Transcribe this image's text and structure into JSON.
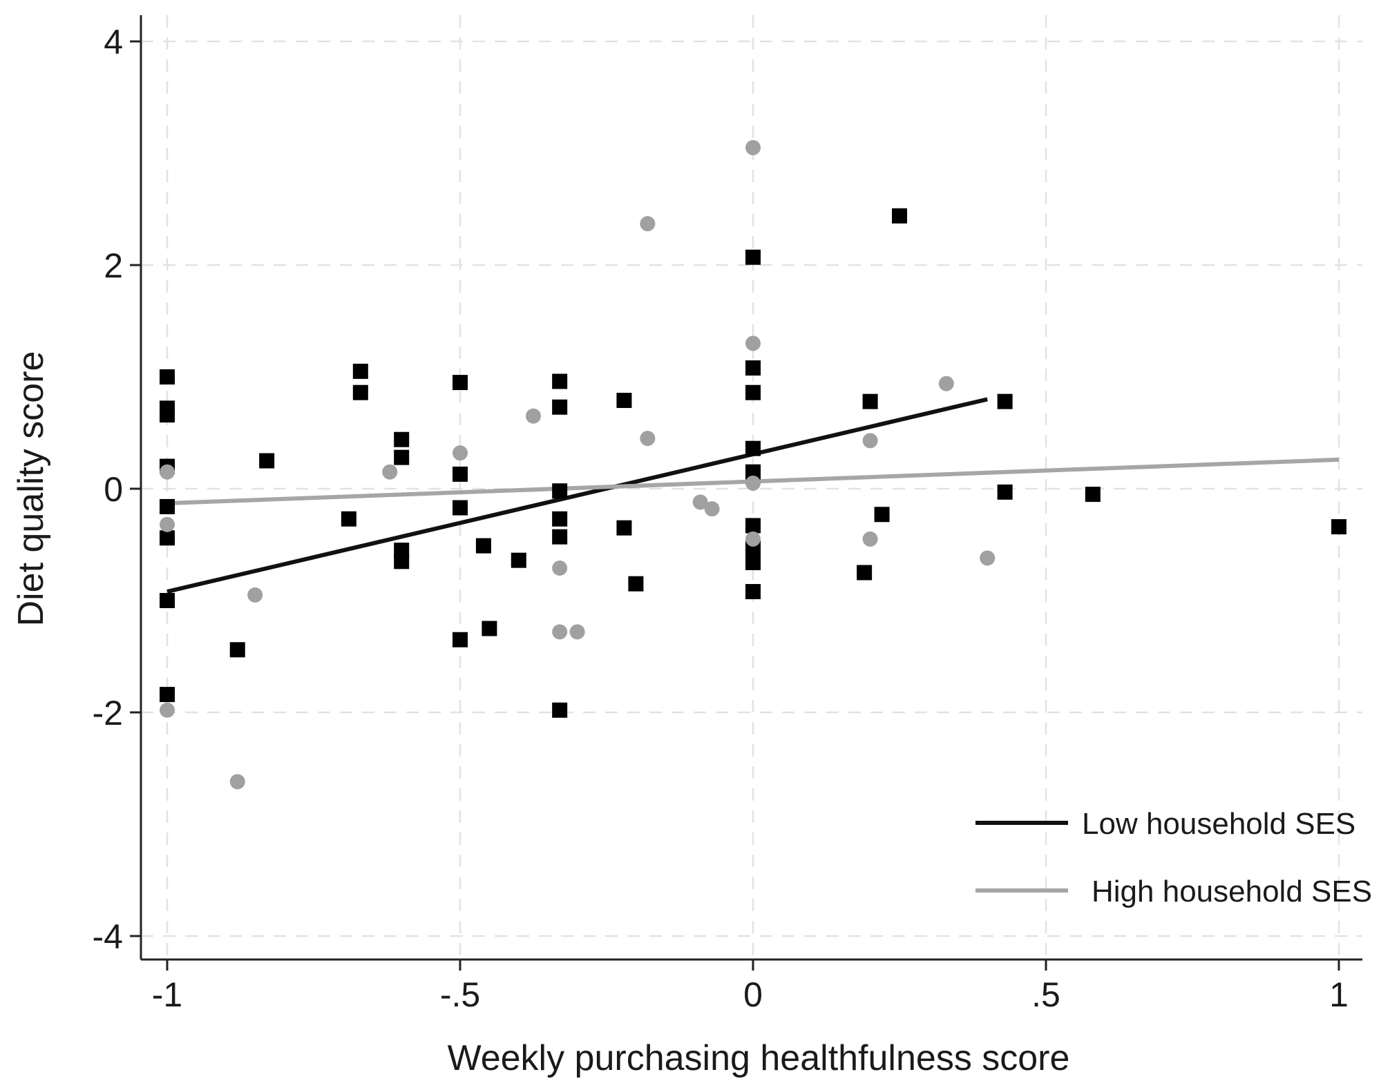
{
  "chart_data": {
    "type": "scatter",
    "title": "",
    "xlabel": "Weekly purchasing healthfulness score",
    "ylabel": "Diet quality score",
    "xlim": [
      -1.04,
      1.04
    ],
    "ylim": [
      -4.2,
      4.2
    ],
    "x_ticks": [
      -1,
      -0.5,
      0,
      0.5,
      1
    ],
    "x_tick_labels": [
      "-1",
      "-.5",
      "0",
      ".5",
      "1"
    ],
    "y_ticks": [
      -4,
      -2,
      0,
      2,
      4
    ],
    "y_tick_labels": [
      "-4",
      "-2",
      "0",
      "2",
      "4"
    ],
    "grid": true,
    "legend_position": "bottom-right",
    "series": [
      {
        "name": "Low household SES",
        "color": "#000000",
        "marker": "square",
        "points": [
          [
            -1,
            1.0
          ],
          [
            -1,
            0.72
          ],
          [
            -1,
            0.66
          ],
          [
            -1,
            0.2
          ],
          [
            -1,
            -0.16
          ],
          [
            -1,
            -0.44
          ],
          [
            -1,
            -1.0
          ],
          [
            -1,
            -1.84
          ],
          [
            -0.88,
            -1.44
          ],
          [
            -0.83,
            0.25
          ],
          [
            -0.69,
            -0.27
          ],
          [
            -0.67,
            1.05
          ],
          [
            -0.67,
            0.86
          ],
          [
            -0.6,
            0.44
          ],
          [
            -0.6,
            0.28
          ],
          [
            -0.6,
            -0.55
          ],
          [
            -0.6,
            -0.65
          ],
          [
            -0.5,
            0.95
          ],
          [
            -0.5,
            0.13
          ],
          [
            -0.5,
            -0.17
          ],
          [
            -0.5,
            -1.35
          ],
          [
            -0.46,
            -0.51
          ],
          [
            -0.45,
            -1.25
          ],
          [
            -0.4,
            -0.64
          ],
          [
            -0.33,
            0.96
          ],
          [
            -0.33,
            0.73
          ],
          [
            -0.33,
            -0.02
          ],
          [
            -0.33,
            -0.27
          ],
          [
            -0.33,
            -0.43
          ],
          [
            -0.33,
            -1.98
          ],
          [
            -0.22,
            0.79
          ],
          [
            -0.22,
            -0.35
          ],
          [
            -0.2,
            -0.85
          ],
          [
            0,
            2.07
          ],
          [
            0,
            1.08
          ],
          [
            0,
            0.86
          ],
          [
            0,
            0.36
          ],
          [
            0,
            0.15
          ],
          [
            0,
            -0.33
          ],
          [
            0,
            -0.53
          ],
          [
            0,
            -0.6
          ],
          [
            0,
            -0.66
          ],
          [
            0,
            -0.92
          ],
          [
            0.19,
            -0.75
          ],
          [
            0.2,
            0.78
          ],
          [
            0.22,
            -0.23
          ],
          [
            0.25,
            2.44
          ],
          [
            0.43,
            0.78
          ],
          [
            0.43,
            -0.03
          ],
          [
            0.58,
            -0.05
          ],
          [
            1.0,
            -0.34
          ]
        ]
      },
      {
        "name": "High household SES",
        "color": "#a0a0a0",
        "marker": "circle",
        "points": [
          [
            -1,
            0.15
          ],
          [
            -1,
            -0.32
          ],
          [
            -1,
            -1.98
          ],
          [
            -0.88,
            -2.62
          ],
          [
            -0.85,
            -0.95
          ],
          [
            -0.62,
            0.15
          ],
          [
            -0.5,
            0.32
          ],
          [
            -0.375,
            0.65
          ],
          [
            -0.33,
            -0.71
          ],
          [
            -0.33,
            -1.28
          ],
          [
            -0.3,
            -1.28
          ],
          [
            -0.18,
            2.37
          ],
          [
            -0.18,
            0.45
          ],
          [
            -0.09,
            -0.12
          ],
          [
            -0.07,
            -0.18
          ],
          [
            0,
            3.05
          ],
          [
            0,
            1.3
          ],
          [
            0,
            0.05
          ],
          [
            0,
            -0.45
          ],
          [
            0.2,
            0.43
          ],
          [
            0.2,
            -0.45
          ],
          [
            0.33,
            0.94
          ],
          [
            0.4,
            -0.62
          ]
        ]
      }
    ],
    "fit_lines": [
      {
        "name": "Low household SES",
        "color": "#111111",
        "x": [
          -1,
          0.4
        ],
        "y": [
          -0.92,
          0.8
        ]
      },
      {
        "name": "High household SES",
        "color": "#a6a6a6",
        "x": [
          -1,
          1
        ],
        "y": [
          -0.13,
          0.26
        ]
      }
    ]
  }
}
